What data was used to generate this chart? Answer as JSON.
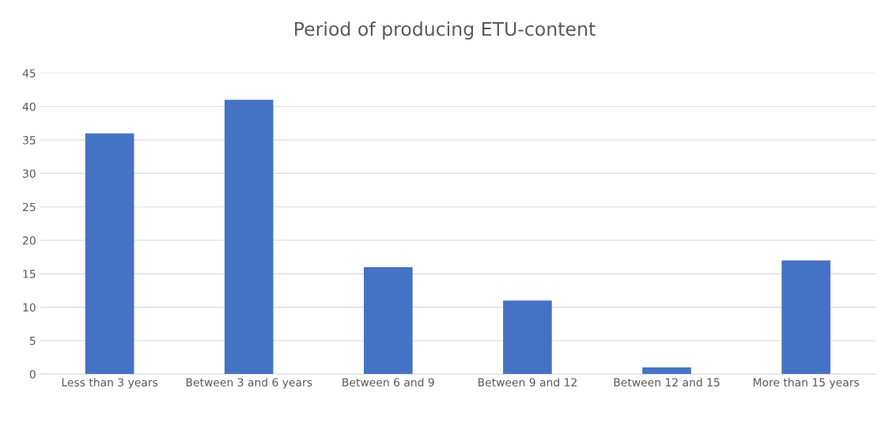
{
  "chart_data": {
    "type": "bar",
    "title": "Period of producing ETU-content",
    "categories": [
      "Less than 3 years",
      "Between 3 and 6 years",
      "Between 6 and 9",
      "Between 9 and 12",
      "Between 12 and 15",
      "More than 15 years"
    ],
    "values": [
      36,
      41,
      16,
      11,
      1,
      17
    ],
    "color": "#4472c4",
    "ylim": [
      0,
      45
    ],
    "yticks": [
      0,
      5,
      10,
      15,
      20,
      25,
      30,
      35,
      40,
      45
    ],
    "grid": "y",
    "legend": false
  }
}
